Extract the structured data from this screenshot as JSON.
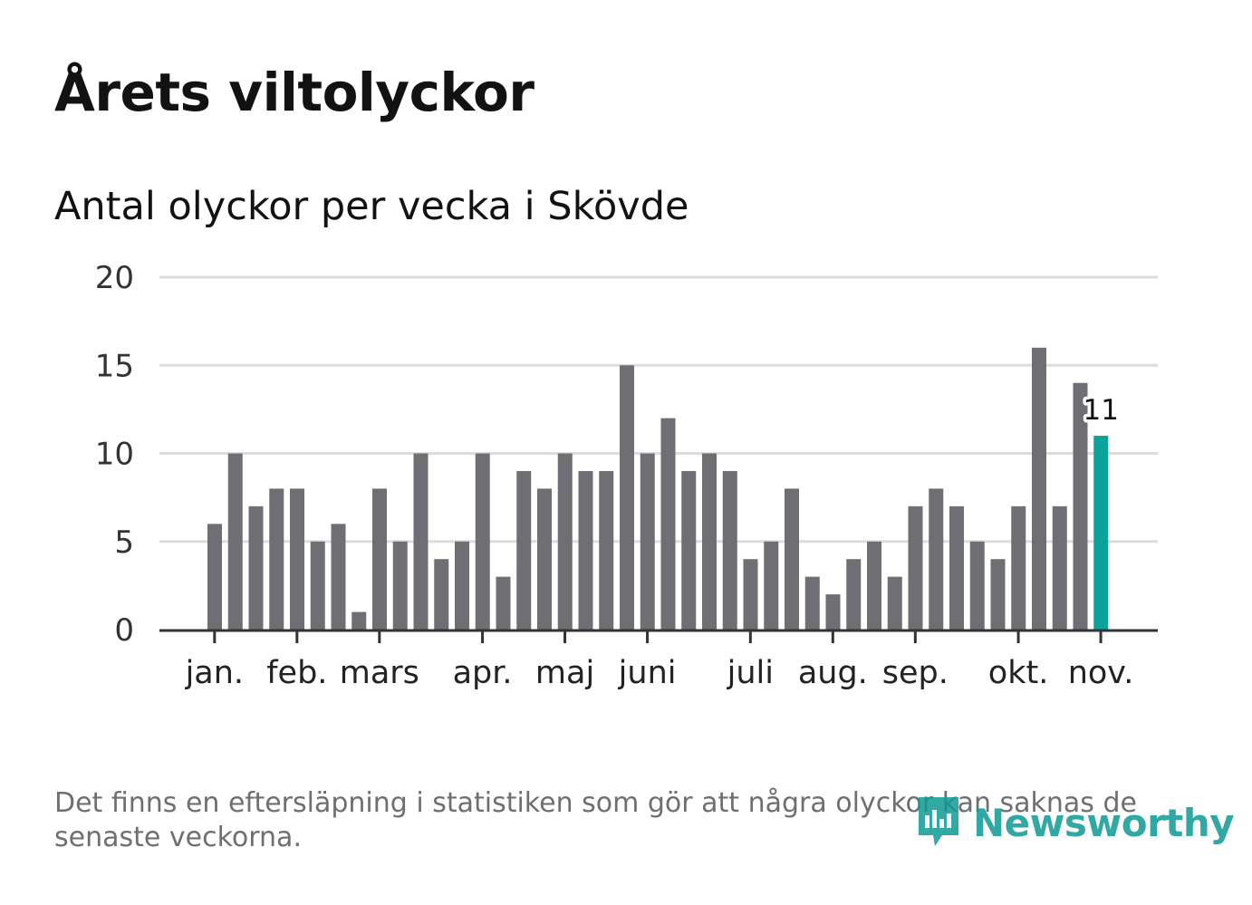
{
  "title": "Årets viltolyckor",
  "subtitle": "Antal olyckor per vecka i Skövde",
  "footnote": "Det finns en eftersläpning i statistiken som gör att några olyckor kan saknas de senaste veckorna.",
  "logo_text": "Newsworthy",
  "colors": {
    "bar": "#6e6e73",
    "highlight": "#0aa39a",
    "grid": "#dddddd",
    "axis": "#333333",
    "logo": "#0e9a93"
  },
  "chart_data": {
    "type": "bar",
    "title": "Årets viltolyckor",
    "subtitle": "Antal olyckor per vecka i Skövde",
    "xlabel": "",
    "ylabel": "",
    "ylim": [
      0,
      20
    ],
    "yticks": [
      0,
      5,
      10,
      15,
      20
    ],
    "grid": true,
    "values": [
      6,
      10,
      7,
      8,
      8,
      5,
      6,
      1,
      8,
      5,
      10,
      4,
      5,
      10,
      3,
      9,
      8,
      10,
      9,
      9,
      15,
      10,
      12,
      9,
      10,
      9,
      4,
      5,
      8,
      3,
      2,
      4,
      5,
      3,
      7,
      8,
      7,
      5,
      4,
      7,
      16,
      7,
      14,
      11
    ],
    "highlight_index": 43,
    "highlight_label": "11",
    "month_labels": [
      {
        "label": "jan.",
        "week_index": 0.3
      },
      {
        "label": "feb.",
        "week_index": 4.3
      },
      {
        "label": "mars",
        "week_index": 8.3
      },
      {
        "label": "apr.",
        "week_index": 13.3
      },
      {
        "label": "maj",
        "week_index": 17.3
      },
      {
        "label": "juni",
        "week_index": 21.3
      },
      {
        "label": "juli",
        "week_index": 26.3
      },
      {
        "label": "aug.",
        "week_index": 30.3
      },
      {
        "label": "sep.",
        "week_index": 34.3
      },
      {
        "label": "okt.",
        "week_index": 39.3
      },
      {
        "label": "nov.",
        "week_index": 43.3
      }
    ]
  }
}
